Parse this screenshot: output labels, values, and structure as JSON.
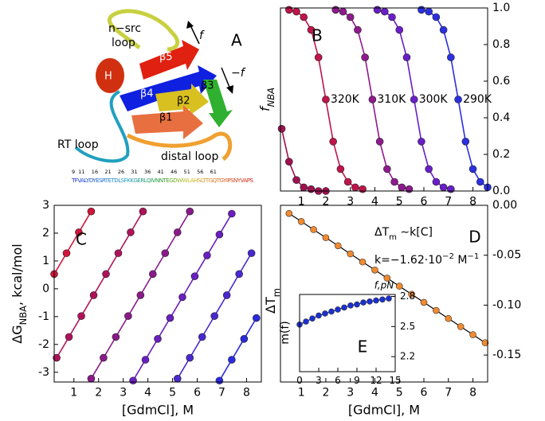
{
  "panel_a": {
    "label": "A",
    "n_src_loop": [
      "n−src",
      "loop"
    ],
    "force": "f",
    "neg_force": "−f",
    "strands": [
      "β5",
      "β4",
      "β3",
      "β2",
      "β1"
    ],
    "helix": "H",
    "rt_loop": "RT loop",
    "distal_loop": "distal loop",
    "residue_numbers": "9  11    16    21    26    31    36    41    46    51    56    61",
    "sequence": "TFVALYDYESRTETDLSFKKGERLQIVNNTEGDWWLAHSLTTGQTGYIPSNYVAPS"
  },
  "chart_data": [
    {
      "type": "line",
      "label": "B",
      "ylabel": [
        {
          "text": "f"
        },
        {
          "text": "NBA",
          "shift": "sub"
        }
      ],
      "yaxis_side": "right",
      "xlim": [
        0.15,
        8.6
      ],
      "ylim": [
        0,
        1
      ],
      "xticks": [
        1,
        2,
        3,
        4,
        5,
        6,
        7,
        8
      ],
      "yticks": [
        {
          "value": 0,
          "label": "0.0"
        },
        {
          "value": 0.2,
          "label": "0.2"
        },
        {
          "value": 0.4,
          "label": "0.4"
        },
        {
          "value": 0.6,
          "label": "0.6"
        },
        {
          "value": 0.8,
          "label": "0.8"
        },
        {
          "value": 1,
          "label": "1.0"
        }
      ],
      "series": [
        {
          "color": "#a01050",
          "x": [
            0.2,
            0.5,
            0.8,
            1.1,
            1.4,
            1.7,
            2.0
          ],
          "values": [
            0.34,
            0.16,
            0.06,
            0.02,
            0.01,
            0.0,
            0.0
          ]
        },
        {
          "name": "320K",
          "color": "#c0144a",
          "x": [
            0.5,
            0.8,
            1.1,
            1.4,
            1.7,
            2.0,
            2.3,
            2.6,
            2.9,
            3.2,
            3.5
          ],
          "values": [
            0.99,
            0.98,
            0.95,
            0.88,
            0.73,
            0.5,
            0.27,
            0.12,
            0.05,
            0.02,
            0.01
          ]
        },
        {
          "name": "310K",
          "color": "#8e1a8e",
          "x": [
            2.4,
            2.7,
            3.0,
            3.3,
            3.6,
            3.9,
            4.2,
            4.5,
            4.8,
            5.1,
            5.4
          ],
          "values": [
            0.99,
            0.98,
            0.95,
            0.88,
            0.73,
            0.5,
            0.27,
            0.12,
            0.05,
            0.02,
            0.01
          ]
        },
        {
          "name": "300K",
          "color": "#6a1ec8",
          "x": [
            4.1,
            4.4,
            4.7,
            5.0,
            5.3,
            5.6,
            5.9,
            6.2,
            6.5,
            6.8,
            7.1
          ],
          "values": [
            0.99,
            0.98,
            0.95,
            0.88,
            0.73,
            0.5,
            0.27,
            0.12,
            0.05,
            0.02,
            0.01
          ]
        },
        {
          "name": "290K",
          "color": "#2a30e0",
          "x": [
            5.9,
            6.2,
            6.5,
            6.8,
            7.1,
            7.4,
            7.7,
            8.0,
            8.3,
            8.6
          ],
          "values": [
            0.99,
            0.98,
            0.95,
            0.88,
            0.73,
            0.5,
            0.27,
            0.12,
            0.05,
            0.02
          ]
        }
      ]
    },
    {
      "type": "line",
      "label": "C",
      "ylabel": [
        {
          "text": "ΔG"
        },
        {
          "text": "NBA",
          "shift": "sub"
        },
        {
          "text": ", kcal/mol"
        }
      ],
      "xlabel": "[GdmCl], M",
      "yaxis_side": "left",
      "xlim": [
        0.2,
        8.6
      ],
      "ylim": [
        -3.35,
        3.0
      ],
      "xticks": [
        1,
        2,
        3,
        4,
        5,
        6,
        7,
        8
      ],
      "yticks": [
        -3,
        -2,
        -1,
        0,
        1,
        2,
        3
      ],
      "series": [
        {
          "color": "#d2143a",
          "x": [
            0.2,
            0.7,
            1.2,
            1.7
          ],
          "values": [
            0.53,
            1.28,
            2.03,
            2.78
          ]
        },
        {
          "color": "#b0125a",
          "x": [
            0.3,
            0.8,
            1.3,
            1.8,
            2.3,
            2.8,
            3.3,
            3.8
          ],
          "values": [
            -2.48,
            -1.73,
            -0.98,
            -0.23,
            0.53,
            1.28,
            2.03,
            2.78
          ]
        },
        {
          "color": "#8a1a8a",
          "x": [
            1.7,
            2.2,
            2.7,
            3.2,
            3.7,
            4.2,
            4.7,
            5.2,
            5.7
          ],
          "values": [
            -3.23,
            -2.48,
            -1.73,
            -0.98,
            -0.23,
            0.53,
            1.28,
            2.03,
            2.78
          ]
        },
        {
          "color": "#6a1ec0",
          "x": [
            3.4,
            3.9,
            4.4,
            4.9,
            5.4,
            5.9,
            6.4,
            6.9,
            7.4
          ],
          "values": [
            -3.3,
            -2.55,
            -1.8,
            -1.05,
            -0.3,
            0.45,
            1.2,
            1.95,
            2.7
          ]
        },
        {
          "color": "#4a28d0",
          "x": [
            5.2,
            5.7,
            6.2,
            6.7,
            7.2,
            7.7,
            8.2
          ],
          "values": [
            -3.23,
            -2.48,
            -1.73,
            -0.98,
            -0.23,
            0.53,
            1.28
          ]
        },
        {
          "color": "#2a2ae0",
          "x": [
            6.9,
            7.4,
            7.9,
            8.4
          ],
          "values": [
            -3.3,
            -2.55,
            -1.8,
            -1.05
          ]
        }
      ]
    },
    {
      "type": "line",
      "label": "D",
      "ylabel": [
        {
          "text": "ΔT"
        },
        {
          "text": "m",
          "shift": "sub"
        }
      ],
      "xlabel": "[GdmCl], M",
      "yaxis_side": "right",
      "xlim": [
        0.15,
        8.6
      ],
      "ylim": [
        -0.177,
        0.0
      ],
      "xticks": [
        1,
        2,
        3,
        4,
        5,
        6,
        7,
        8
      ],
      "yticks": [
        {
          "value": 0,
          "label": "0.00"
        },
        {
          "value": -0.05,
          "label": "-0.05"
        },
        {
          "value": -0.1,
          "label": "-0.10"
        },
        {
          "value": -0.15,
          "label": "-0.15"
        }
      ],
      "annotations": [
        [
          {
            "text": "ΔT"
          },
          {
            "text": "m",
            "shift": "sub"
          },
          {
            "text": " ∼k[C]"
          }
        ],
        [
          {
            "text": "k=−1.62·10"
          },
          {
            "text": "−2",
            "shift": "super"
          },
          {
            "text": " M"
          },
          {
            "text": "−1",
            "shift": "super"
          }
        ]
      ],
      "series": [
        {
          "color": "#f08a30",
          "line_color": "#000000",
          "x": [
            0.5,
            1.0,
            1.5,
            2.0,
            2.5,
            3.0,
            3.5,
            4.0,
            4.5,
            5.0,
            5.5,
            6.0,
            6.5,
            7.0,
            7.5,
            8.0,
            8.5
          ],
          "values": [
            -0.0081,
            -0.0162,
            -0.0243,
            -0.0324,
            -0.0405,
            -0.0486,
            -0.0567,
            -0.0648,
            -0.0729,
            -0.081,
            -0.0891,
            -0.0972,
            -0.1053,
            -0.1134,
            -0.1215,
            -0.1296,
            -0.1377
          ]
        }
      ]
    },
    {
      "type": "line",
      "label": "E",
      "title": "f,pN",
      "ylabel": "m(f)",
      "yaxis_side": "right",
      "xlim": [
        0,
        15
      ],
      "ylim": [
        2.05,
        2.82
      ],
      "xticks": [
        0,
        3,
        6,
        9,
        12,
        15
      ],
      "yticks": [
        2.2,
        2.5,
        2.8
      ],
      "series": [
        {
          "color": "#1a30d0",
          "line_color": "#10208a",
          "x": [
            0,
            1,
            2,
            3,
            4,
            5,
            6,
            7,
            8,
            9,
            10,
            11,
            12,
            13,
            14
          ],
          "values": [
            2.52,
            2.55,
            2.58,
            2.61,
            2.63,
            2.65,
            2.67,
            2.69,
            2.71,
            2.72,
            2.74,
            2.75,
            2.76,
            2.77,
            2.78
          ]
        }
      ]
    }
  ]
}
